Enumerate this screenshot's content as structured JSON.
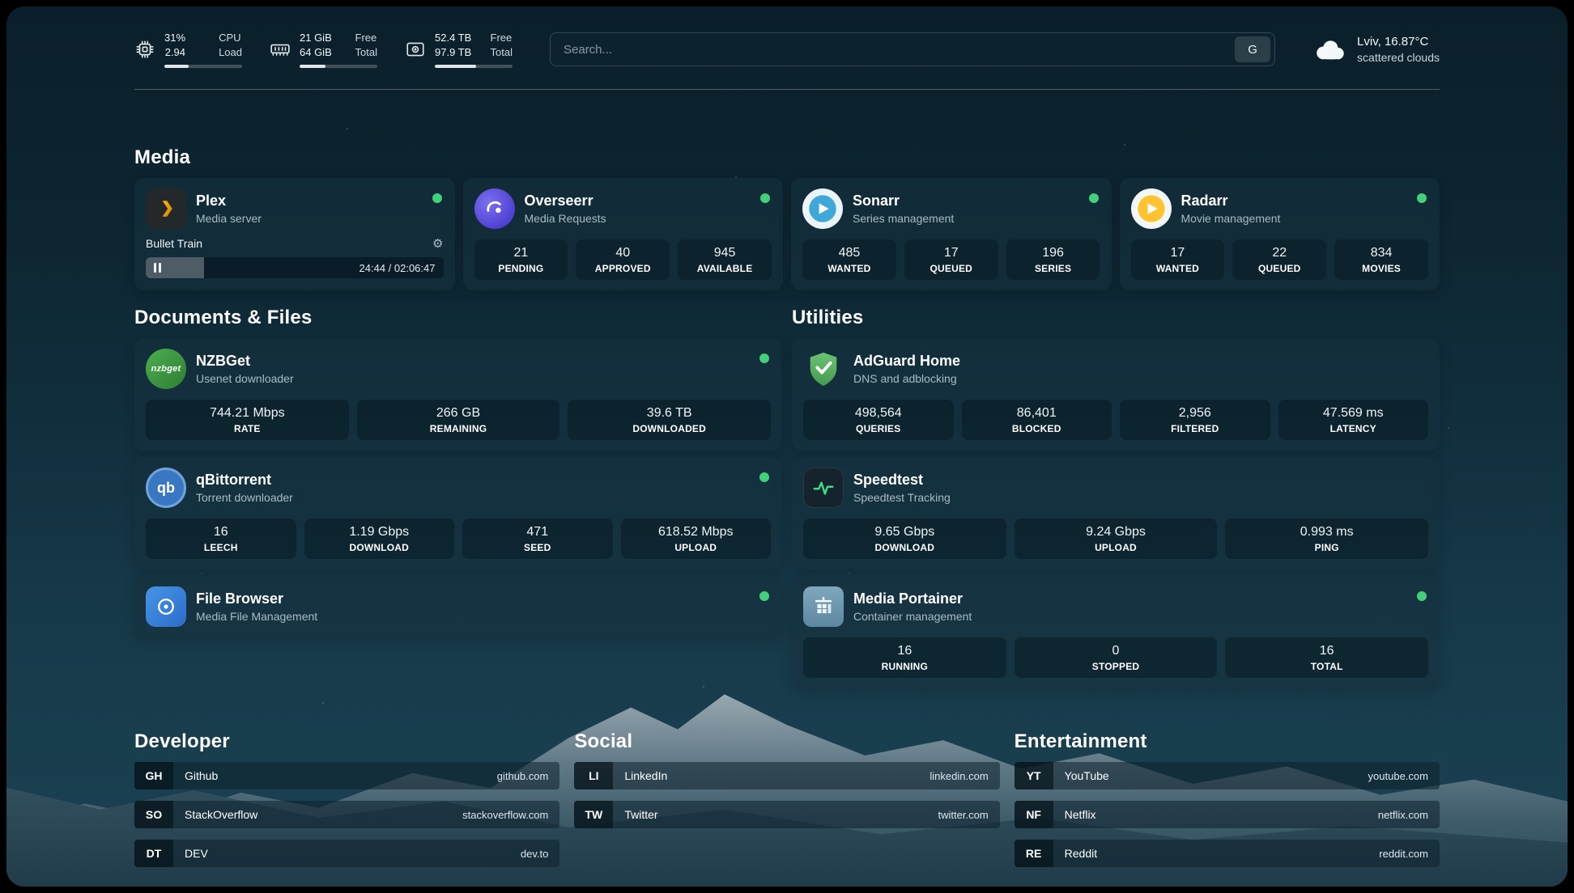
{
  "header": {
    "metrics": {
      "cpu": {
        "value_top": "31%",
        "value_bottom": "2.94",
        "label_top": "CPU",
        "label_bottom": "Load",
        "percent": 31
      },
      "ram": {
        "value_top": "21 GiB",
        "value_bottom": "64 GiB",
        "label_top": "Free",
        "label_bottom": "Total",
        "percent": 33
      },
      "disk": {
        "value_top": "52.4 TB",
        "value_bottom": "97.9 TB",
        "label_top": "Free",
        "label_bottom": "Total",
        "percent": 53
      }
    },
    "search": {
      "placeholder": "Search...",
      "engine_label": "G"
    },
    "weather": {
      "location": "Lviv, 16.87°C",
      "condition": "scattered clouds"
    }
  },
  "sections": {
    "media": "Media",
    "documents": "Documents & Files",
    "utilities": "Utilities",
    "developer": "Developer",
    "social": "Social",
    "entertainment": "Entertainment"
  },
  "apps": {
    "plex": {
      "name": "Plex",
      "subtitle": "Media server",
      "now_playing": "Bullet Train",
      "elapsed_total": "24:44 / 02:06:47",
      "progress_percent": 19.5
    },
    "overseerr": {
      "name": "Overseerr",
      "subtitle": "Media Requests",
      "stats": [
        {
          "value": "21",
          "label": "PENDING"
        },
        {
          "value": "40",
          "label": "APPROVED"
        },
        {
          "value": "945",
          "label": "AVAILABLE"
        }
      ]
    },
    "sonarr": {
      "name": "Sonarr",
      "subtitle": "Series management",
      "stats": [
        {
          "value": "485",
          "label": "WANTED"
        },
        {
          "value": "17",
          "label": "QUEUED"
        },
        {
          "value": "196",
          "label": "SERIES"
        }
      ]
    },
    "radarr": {
      "name": "Radarr",
      "subtitle": "Movie management",
      "stats": [
        {
          "value": "17",
          "label": "WANTED"
        },
        {
          "value": "22",
          "label": "QUEUED"
        },
        {
          "value": "834",
          "label": "MOVIES"
        }
      ]
    },
    "nzbget": {
      "name": "NZBGet",
      "subtitle": "Usenet downloader",
      "stats": [
        {
          "value": "744.21 Mbps",
          "label": "RATE"
        },
        {
          "value": "266 GB",
          "label": "REMAINING"
        },
        {
          "value": "39.6 TB",
          "label": "DOWNLOADED"
        }
      ]
    },
    "qbittorrent": {
      "name": "qBittorrent",
      "subtitle": "Torrent downloader",
      "stats": [
        {
          "value": "16",
          "label": "LEECH"
        },
        {
          "value": "1.19 Gbps",
          "label": "DOWNLOAD"
        },
        {
          "value": "471",
          "label": "SEED"
        },
        {
          "value": "618.52 Mbps",
          "label": "UPLOAD"
        }
      ]
    },
    "filebrowser": {
      "name": "File Browser",
      "subtitle": "Media File Management"
    },
    "adguard": {
      "name": "AdGuard Home",
      "subtitle": "DNS and adblocking",
      "stats": [
        {
          "value": "498,564",
          "label": "QUERIES"
        },
        {
          "value": "86,401",
          "label": "BLOCKED"
        },
        {
          "value": "2,956",
          "label": "FILTERED"
        },
        {
          "value": "47.569 ms",
          "label": "LATENCY"
        }
      ]
    },
    "speedtest": {
      "name": "Speedtest",
      "subtitle": "Speedtest Tracking",
      "stats": [
        {
          "value": "9.65 Gbps",
          "label": "DOWNLOAD"
        },
        {
          "value": "9.24 Gbps",
          "label": "UPLOAD"
        },
        {
          "value": "0.993 ms",
          "label": "PING"
        }
      ]
    },
    "portainer": {
      "name": "Media Portainer",
      "subtitle": "Container management",
      "stats": [
        {
          "value": "16",
          "label": "RUNNING"
        },
        {
          "value": "0",
          "label": "STOPPED"
        },
        {
          "value": "16",
          "label": "TOTAL"
        }
      ]
    }
  },
  "bookmarks": {
    "developer": [
      {
        "abbr": "GH",
        "name": "Github",
        "url": "github.com"
      },
      {
        "abbr": "SO",
        "name": "StackOverflow",
        "url": "stackoverflow.com"
      },
      {
        "abbr": "DT",
        "name": "DEV",
        "url": "dev.to"
      }
    ],
    "social": [
      {
        "abbr": "LI",
        "name": "LinkedIn",
        "url": "linkedin.com"
      },
      {
        "abbr": "TW",
        "name": "Twitter",
        "url": "twitter.com"
      }
    ],
    "entertainment": [
      {
        "abbr": "YT",
        "name": "YouTube",
        "url": "youtube.com"
      },
      {
        "abbr": "NF",
        "name": "Netflix",
        "url": "netflix.com"
      },
      {
        "abbr": "RE",
        "name": "Reddit",
        "url": "reddit.com"
      }
    ]
  },
  "icons": {
    "gear": "⚙",
    "nzbget_glyph": "nzbget",
    "qbittorrent_glyph": "qb"
  },
  "colors": {
    "status_online": "#44d07b",
    "accent_green": "#3ddc84"
  }
}
